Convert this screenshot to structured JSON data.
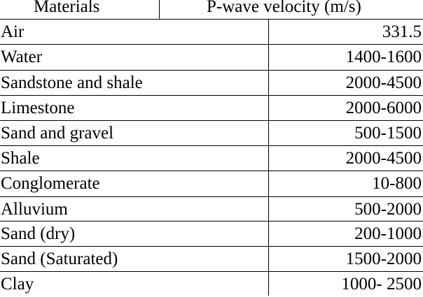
{
  "table": {
    "headers": {
      "materials": "Materials",
      "velocity": "P-wave velocity (m/s)"
    },
    "rows": [
      {
        "material": "Air",
        "velocity": "331.5"
      },
      {
        "material": "Water",
        "velocity": "1400-1600"
      },
      {
        "material": "Sandstone and shale",
        "velocity": "2000-4500"
      },
      {
        "material": "Limestone",
        "velocity": "2000-6000"
      },
      {
        "material": "Sand and gravel",
        "velocity": "500-1500"
      },
      {
        "material": "Shale",
        "velocity": "2000-4500"
      },
      {
        "material": "Conglomerate",
        "velocity": "10-800"
      },
      {
        "material": "Alluvium",
        "velocity": "500-2000"
      },
      {
        "material": "Sand (dry)",
        "velocity": "200-1000"
      },
      {
        "material": "Sand (Saturated)",
        "velocity": "1500-2000"
      },
      {
        "material": "Clay",
        "velocity": "1000- 2500"
      }
    ]
  }
}
